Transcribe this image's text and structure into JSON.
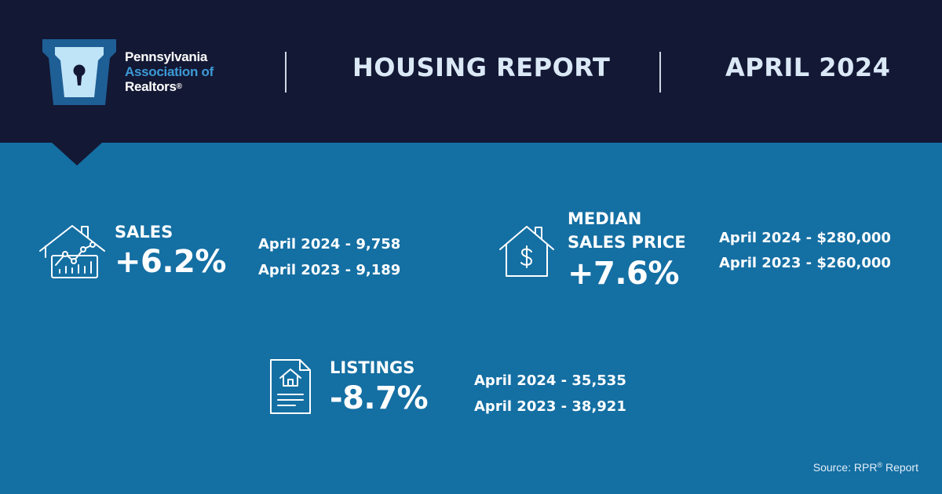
{
  "header": {
    "logo": {
      "line1": "Pennsylvania",
      "line2": "Association of",
      "line3": "Realtors",
      "registered_mark": "®"
    },
    "title": "HOUSING REPORT",
    "date": "APRIL 2024",
    "colors": {
      "background": "#131834",
      "logo_outer": "#1e5f96",
      "logo_inner": "#bfe3f7",
      "logo_accent": "#3d9ad6"
    }
  },
  "stats": {
    "sales": {
      "icon": "house-chart-icon",
      "label": "SALES",
      "change": "+6.2%",
      "current": "April 2024 - 9,758",
      "previous": "April 2023 - 9,189"
    },
    "median": {
      "icon": "house-dollar-icon",
      "label_line1": "MEDIAN",
      "label_line2": "SALES PRICE",
      "change": "+7.6%",
      "current": "April 2024 - $280,000",
      "previous": "April 2023 - $260,000"
    },
    "listings": {
      "icon": "listing-document-icon",
      "label": "LISTINGS",
      "change": "-8.7%",
      "current": "April 2024 - 35,535",
      "previous": "April 2023 - 38,921"
    }
  },
  "footer": {
    "source_prefix": "Source: RPR",
    "registered_mark": "®",
    "source_suffix": " Report"
  },
  "colors": {
    "body_background": "#146fa3",
    "text": "#ffffff"
  }
}
